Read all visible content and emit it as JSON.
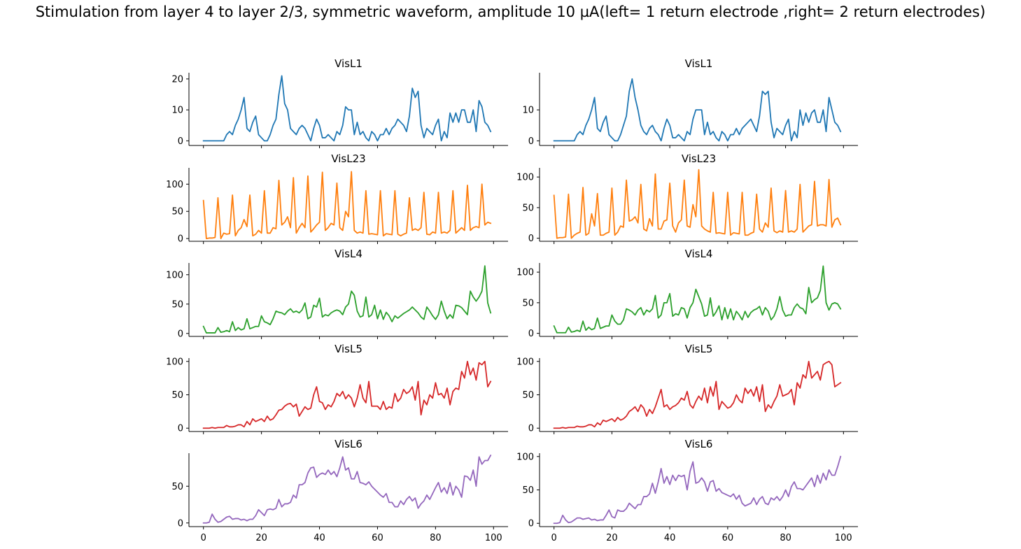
{
  "figure": {
    "suptitle": "Stimulation from layer 4 to layer 2/3, symmetric waveform, amplitude 10 µA(left= 1 return electrode ,right= 2 return electrodes)"
  },
  "chart_data": [
    {
      "type": "line",
      "column": "left",
      "title": "VisL1",
      "color": "#1f77b4",
      "xlim": [
        -5,
        105
      ],
      "ylim": [
        -1.5,
        22
      ],
      "yticks": [
        0,
        10,
        20
      ],
      "xticks": [
        0,
        20,
        40,
        60,
        80,
        100
      ],
      "show_xticklabels": false,
      "x_start": 0,
      "values": [
        0,
        0,
        0,
        0,
        0,
        0,
        0,
        0,
        2,
        3,
        2,
        5,
        7,
        10,
        14,
        4,
        3,
        6,
        8,
        2,
        1,
        0,
        0,
        2,
        5,
        7,
        15,
        21,
        12,
        10,
        4,
        3,
        2,
        4,
        5,
        4,
        2,
        0,
        4,
        7,
        5,
        1,
        1,
        2,
        1,
        0,
        3,
        2,
        5,
        11,
        10,
        10,
        2,
        6,
        2,
        3,
        1,
        0,
        3,
        2,
        0,
        2,
        2,
        4,
        2,
        4,
        5,
        7,
        6,
        5,
        3,
        8,
        17,
        14,
        16,
        5,
        1,
        4,
        3,
        2,
        5,
        7,
        0,
        3,
        1,
        9,
        6,
        9,
        6,
        10,
        10,
        6,
        6,
        10,
        3,
        13,
        11,
        6,
        5,
        3
      ]
    },
    {
      "type": "line",
      "column": "right",
      "title": "VisL1",
      "color": "#1f77b4",
      "xlim": [
        -5,
        105
      ],
      "ylim": [
        -1.5,
        22
      ],
      "yticks": [
        0,
        10
      ],
      "xticks": [
        0,
        20,
        40,
        60,
        80,
        100
      ],
      "show_xticklabels": false,
      "x_start": 0,
      "values": [
        0,
        0,
        0,
        0,
        0,
        0,
        0,
        0,
        2,
        3,
        2,
        5,
        7,
        10,
        14,
        4,
        3,
        6,
        8,
        2,
        1,
        0,
        0,
        2,
        5,
        8,
        16,
        20,
        14,
        10,
        5,
        3,
        2,
        4,
        5,
        3,
        2,
        0,
        4,
        7,
        5,
        1,
        1,
        2,
        1,
        0,
        3,
        2,
        7,
        10,
        10,
        10,
        2,
        6,
        2,
        3,
        1,
        0,
        3,
        2,
        0,
        2,
        2,
        4,
        2,
        4,
        5,
        6,
        7,
        5,
        3,
        8,
        16,
        15,
        16,
        6,
        1,
        4,
        3,
        2,
        5,
        7,
        0,
        3,
        1,
        10,
        5,
        9,
        6,
        9,
        10,
        6,
        6,
        10,
        3,
        14,
        10,
        6,
        5,
        3
      ]
    },
    {
      "type": "line",
      "column": "left",
      "title": "VisL23",
      "color": "#ff7f0e",
      "xlim": [
        -5,
        105
      ],
      "ylim": [
        -5,
        130
      ],
      "yticks": [
        0,
        50,
        100
      ],
      "xticks": [
        0,
        20,
        40,
        60,
        80,
        100
      ],
      "show_xticklabels": false,
      "x_start": 0,
      "values": [
        70,
        0,
        1,
        1,
        2,
        75,
        0,
        10,
        8,
        9,
        80,
        5,
        15,
        20,
        35,
        22,
        80,
        5,
        8,
        15,
        10,
        88,
        10,
        10,
        20,
        18,
        107,
        25,
        30,
        40,
        20,
        112,
        10,
        20,
        28,
        20,
        115,
        12,
        18,
        25,
        30,
        122,
        15,
        20,
        28,
        25,
        102,
        20,
        15,
        50,
        40,
        123,
        15,
        10,
        12,
        10,
        88,
        8,
        9,
        8,
        7,
        88,
        5,
        9,
        8,
        7,
        88,
        8,
        5,
        8,
        10,
        75,
        15,
        18,
        15,
        20,
        85,
        8,
        7,
        12,
        10,
        85,
        10,
        12,
        10,
        15,
        88,
        10,
        15,
        20,
        15,
        98,
        15,
        20,
        22,
        20,
        100,
        25,
        30,
        28
      ]
    },
    {
      "type": "line",
      "column": "right",
      "title": "VisL23",
      "color": "#ff7f0e",
      "xlim": [
        -5,
        105
      ],
      "ylim": [
        -5,
        115
      ],
      "yticks": [
        0,
        50,
        100
      ],
      "xticks": [
        0,
        20,
        40,
        60,
        80,
        100
      ],
      "show_xticklabels": false,
      "x_start": 0,
      "values": [
        70,
        0,
        1,
        1,
        2,
        72,
        0,
        5,
        8,
        10,
        83,
        5,
        8,
        40,
        20,
        73,
        5,
        5,
        8,
        10,
        82,
        5,
        10,
        20,
        18,
        95,
        28,
        30,
        35,
        25,
        88,
        15,
        12,
        32,
        20,
        105,
        15,
        15,
        28,
        30,
        90,
        20,
        10,
        25,
        30,
        95,
        20,
        18,
        55,
        35,
        112,
        20,
        15,
        12,
        10,
        75,
        8,
        9,
        8,
        7,
        75,
        5,
        9,
        8,
        7,
        75,
        5,
        5,
        8,
        10,
        72,
        15,
        10,
        25,
        18,
        82,
        12,
        9,
        12,
        10,
        78,
        10,
        12,
        10,
        15,
        88,
        10,
        15,
        20,
        22,
        93,
        20,
        22,
        22,
        20,
        96,
        18,
        30,
        33,
        22
      ]
    },
    {
      "type": "line",
      "column": "left",
      "title": "VisL4",
      "color": "#2ca02c",
      "xlim": [
        -5,
        105
      ],
      "ylim": [
        -5,
        120
      ],
      "yticks": [
        0,
        50,
        100
      ],
      "xticks": [
        0,
        20,
        40,
        60,
        80,
        100
      ],
      "show_xticklabels": false,
      "x_start": 0,
      "values": [
        12,
        1,
        1,
        1,
        1,
        10,
        2,
        3,
        5,
        3,
        20,
        5,
        10,
        6,
        8,
        25,
        8,
        10,
        12,
        12,
        30,
        20,
        18,
        15,
        25,
        38,
        36,
        35,
        32,
        38,
        42,
        36,
        38,
        35,
        40,
        52,
        25,
        28,
        48,
        45,
        60,
        28,
        32,
        30,
        35,
        38,
        40,
        38,
        32,
        45,
        50,
        72,
        65,
        38,
        28,
        30,
        62,
        28,
        32,
        48,
        25,
        40,
        24,
        36,
        30,
        20,
        30,
        26,
        30,
        34,
        37,
        40,
        45,
        40,
        35,
        28,
        24,
        45,
        38,
        30,
        24,
        32,
        55,
        38,
        25,
        32,
        26,
        48,
        47,
        44,
        38,
        32,
        72,
        62,
        55,
        62,
        72,
        115,
        52,
        35
      ]
    },
    {
      "type": "line",
      "column": "right",
      "title": "VisL4",
      "color": "#2ca02c",
      "xlim": [
        -5,
        105
      ],
      "ylim": [
        -5,
        115
      ],
      "yticks": [
        0,
        50,
        100
      ],
      "xticks": [
        0,
        20,
        40,
        60,
        80,
        100
      ],
      "show_xticklabels": false,
      "x_start": 0,
      "values": [
        12,
        1,
        1,
        1,
        1,
        10,
        2,
        3,
        5,
        3,
        20,
        5,
        10,
        6,
        8,
        25,
        8,
        10,
        12,
        12,
        30,
        20,
        15,
        15,
        22,
        40,
        38,
        35,
        30,
        38,
        42,
        30,
        38,
        35,
        40,
        62,
        25,
        30,
        50,
        50,
        65,
        28,
        32,
        30,
        42,
        40,
        25,
        42,
        50,
        72,
        60,
        48,
        28,
        30,
        58,
        28,
        35,
        45,
        22,
        42,
        24,
        40,
        22,
        36,
        30,
        22,
        36,
        26,
        34,
        38,
        40,
        44,
        30,
        42,
        36,
        22,
        28,
        40,
        60,
        38,
        28,
        30,
        30,
        42,
        48,
        42,
        40,
        32,
        75,
        50,
        55,
        58,
        70,
        110,
        50,
        38,
        48,
        50,
        48,
        40
      ]
    },
    {
      "type": "line",
      "column": "left",
      "title": "VisL5",
      "color": "#d62728",
      "xlim": [
        -5,
        105
      ],
      "ylim": [
        -5,
        105
      ],
      "yticks": [
        0,
        50,
        100
      ],
      "xticks": [
        0,
        20,
        40,
        60,
        80,
        100
      ],
      "show_xticklabels": false,
      "x_start": 0,
      "values": [
        0,
        0,
        0,
        1,
        0,
        1,
        1,
        1,
        4,
        2,
        2,
        3,
        5,
        5,
        2,
        10,
        5,
        14,
        10,
        12,
        14,
        10,
        18,
        12,
        14,
        20,
        27,
        28,
        33,
        36,
        37,
        32,
        36,
        18,
        25,
        32,
        28,
        30,
        50,
        62,
        40,
        38,
        28,
        35,
        32,
        40,
        52,
        48,
        55,
        44,
        50,
        45,
        32,
        45,
        65,
        45,
        38,
        70,
        33,
        33,
        33,
        28,
        40,
        28,
        32,
        30,
        52,
        40,
        45,
        58,
        52,
        55,
        62,
        42,
        70,
        20,
        42,
        35,
        50,
        45,
        68,
        50,
        52,
        45,
        60,
        35,
        55,
        60,
        58,
        85,
        75,
        100,
        80,
        90,
        72,
        98,
        95,
        100,
        62,
        70
      ]
    },
    {
      "type": "line",
      "column": "right",
      "title": "VisL5",
      "color": "#d62728",
      "xlim": [
        -5,
        105
      ],
      "ylim": [
        -5,
        105
      ],
      "yticks": [
        0,
        50,
        100
      ],
      "xticks": [
        0,
        20,
        40,
        60,
        80,
        100
      ],
      "show_xticklabels": false,
      "x_start": 0,
      "values": [
        0,
        0,
        0,
        1,
        0,
        1,
        1,
        1,
        3,
        2,
        2,
        3,
        5,
        5,
        2,
        8,
        5,
        12,
        10,
        12,
        14,
        10,
        16,
        12,
        14,
        18,
        25,
        28,
        32,
        25,
        35,
        30,
        18,
        28,
        22,
        32,
        45,
        58,
        32,
        35,
        28,
        32,
        34,
        38,
        45,
        42,
        55,
        35,
        30,
        40,
        48,
        42,
        60,
        38,
        62,
        48,
        70,
        28,
        40,
        35,
        30,
        32,
        38,
        50,
        42,
        38,
        60,
        52,
        58,
        48,
        62,
        40,
        65,
        25,
        35,
        30,
        40,
        48,
        65,
        48,
        50,
        52,
        58,
        35,
        68,
        60,
        80,
        75,
        100,
        75,
        80,
        85,
        72,
        95,
        98,
        100,
        95,
        62,
        65,
        68
      ]
    },
    {
      "type": "line",
      "column": "left",
      "title": "VisL6",
      "color": "#9467bd",
      "xlim": [
        -5,
        105
      ],
      "ylim": [
        -5,
        95
      ],
      "yticks": [
        0,
        50
      ],
      "xticks": [
        0,
        20,
        40,
        60,
        80,
        100
      ],
      "show_xticklabels": true,
      "xticklabels": [
        "0",
        "20",
        "40",
        "60",
        "80",
        "100"
      ],
      "x_start": 0,
      "values": [
        0,
        0,
        1,
        12,
        5,
        1,
        2,
        5,
        8,
        9,
        5,
        6,
        6,
        4,
        5,
        3,
        5,
        5,
        10,
        18,
        14,
        10,
        18,
        19,
        18,
        20,
        32,
        22,
        26,
        26,
        28,
        38,
        34,
        52,
        52,
        55,
        68,
        75,
        76,
        62,
        66,
        68,
        66,
        72,
        66,
        70,
        63,
        75,
        90,
        72,
        75,
        60,
        60,
        70,
        55,
        54,
        52,
        56,
        50,
        46,
        42,
        38,
        35,
        40,
        28,
        28,
        22,
        22,
        30,
        25,
        32,
        36,
        30,
        34,
        20,
        26,
        30,
        38,
        32,
        40,
        48,
        55,
        42,
        48,
        40,
        55,
        38,
        50,
        45,
        35,
        64,
        63,
        58,
        72,
        50,
        90,
        80,
        85,
        85,
        92
      ]
    },
    {
      "type": "line",
      "column": "right",
      "title": "VisL6",
      "color": "#9467bd",
      "xlim": [
        -5,
        105
      ],
      "ylim": [
        -5,
        105
      ],
      "yticks": [
        0,
        50,
        100
      ],
      "xticks": [
        0,
        20,
        40,
        60,
        80,
        100
      ],
      "show_xticklabels": true,
      "xticklabels": [
        "0",
        "20",
        "40",
        "60",
        "80",
        "100"
      ],
      "x_start": 0,
      "values": [
        0,
        0,
        1,
        12,
        5,
        1,
        2,
        5,
        8,
        8,
        6,
        7,
        8,
        5,
        6,
        4,
        5,
        5,
        12,
        20,
        10,
        8,
        20,
        18,
        18,
        22,
        30,
        26,
        22,
        28,
        28,
        40,
        40,
        44,
        60,
        45,
        62,
        82,
        60,
        70,
        58,
        72,
        64,
        72,
        70,
        72,
        50,
        78,
        92,
        60,
        62,
        68,
        62,
        48,
        62,
        64,
        48,
        52,
        46,
        44,
        42,
        40,
        44,
        36,
        42,
        30,
        26,
        28,
        30,
        38,
        28,
        36,
        40,
        30,
        28,
        38,
        35,
        40,
        34,
        40,
        50,
        40,
        55,
        62,
        52,
        52,
        50,
        56,
        62,
        68,
        55,
        72,
        60,
        75,
        65,
        80,
        72,
        72,
        85,
        100
      ]
    }
  ]
}
